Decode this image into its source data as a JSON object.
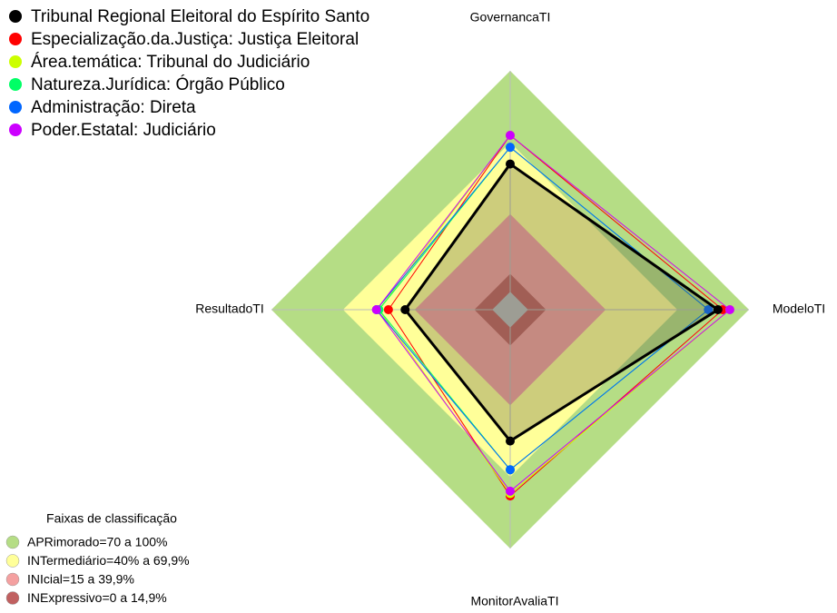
{
  "chart_data": {
    "type": "radar",
    "axes": [
      "GovernancaTI",
      "ModeloTI",
      "MonitorAvaliaTI",
      "ResultadoTI"
    ],
    "rlim": [
      0,
      100
    ],
    "series": [
      {
        "name": "Tribunal Regional Eleitoral do Espírito Santo",
        "color": "#000000",
        "values": [
          61,
          87,
          55,
          44
        ]
      },
      {
        "name": "Especialização.da.Justiça: Justiça Eleitoral",
        "color": "#ff0000",
        "values": [
          73,
          89,
          78,
          51
        ]
      },
      {
        "name": "Área.temática: Tribunal do Judiciário",
        "color": "#ccff00",
        "values": [
          73,
          92,
          77,
          55
        ]
      },
      {
        "name": "Natureza.Jurídica: Órgão Público",
        "color": "#00ff66",
        "values": [
          68,
          83,
          67,
          55
        ]
      },
      {
        "name": "Administração: Direta",
        "color": "#0066ff",
        "values": [
          68,
          83,
          67,
          56
        ]
      },
      {
        "name": "Poder.Estatal: Judiciário",
        "color": "#cc00ff",
        "values": [
          73,
          92,
          76,
          56
        ]
      }
    ],
    "bands_title": "Faixas de classificação",
    "bands": [
      {
        "label": "APRimorado=70 a 100%",
        "value": 100,
        "color": "#b5dd85"
      },
      {
        "label": "INTermediário=40% a 69,9%",
        "value": 70,
        "color": "#ffff99"
      },
      {
        "label": "INIcial=15 a 39,9%",
        "value": 40,
        "color": "#f4a0a0"
      },
      {
        "label": "INExpressivo=0 a 14,9%",
        "value": 15,
        "color": "#c06060"
      }
    ]
  }
}
